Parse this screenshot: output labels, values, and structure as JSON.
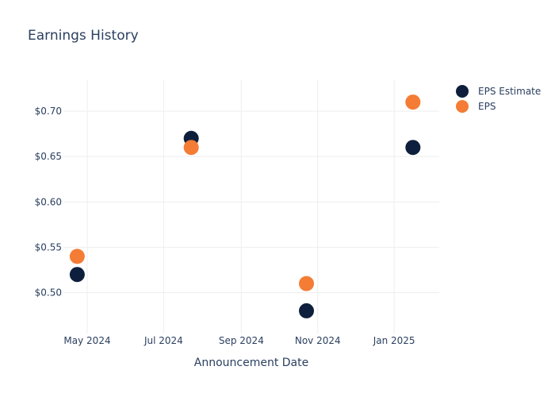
{
  "chart_data": {
    "type": "scatter",
    "title": "Earnings History",
    "xlabel": "Announcement Date",
    "ylabel": "",
    "x_ticks": [
      {
        "date": "2024-05-01",
        "label": "May 2024"
      },
      {
        "date": "2024-07-01",
        "label": "Jul 2024"
      },
      {
        "date": "2024-09-01",
        "label": "Sep 2024"
      },
      {
        "date": "2024-11-01",
        "label": "Nov 2024"
      },
      {
        "date": "2025-01-01",
        "label": "Jan 2025"
      }
    ],
    "y_ticks": [
      {
        "value": 0.5,
        "label": "$0.50"
      },
      {
        "value": 0.55,
        "label": "$0.55"
      },
      {
        "value": 0.6,
        "label": "$0.60"
      },
      {
        "value": 0.65,
        "label": "$0.65"
      },
      {
        "value": 0.7,
        "label": "$0.70"
      }
    ],
    "xlim": [
      "2024-04-12",
      "2025-02-06"
    ],
    "ylim": [
      0.455,
      0.735
    ],
    "grid": true,
    "legend_position": "top-right",
    "series": [
      {
        "name": "EPS Estimate",
        "color": "#0d1f3c",
        "points": [
          {
            "x": "2024-04-23",
            "y": 0.52
          },
          {
            "x": "2024-07-23",
            "y": 0.67
          },
          {
            "x": "2024-10-23",
            "y": 0.48
          },
          {
            "x": "2025-01-16",
            "y": 0.66
          }
        ]
      },
      {
        "name": "EPS",
        "color": "#f47c35",
        "points": [
          {
            "x": "2024-04-23",
            "y": 0.54
          },
          {
            "x": "2024-07-23",
            "y": 0.66
          },
          {
            "x": "2024-10-23",
            "y": 0.51
          },
          {
            "x": "2025-01-16",
            "y": 0.71
          }
        ]
      }
    ]
  }
}
